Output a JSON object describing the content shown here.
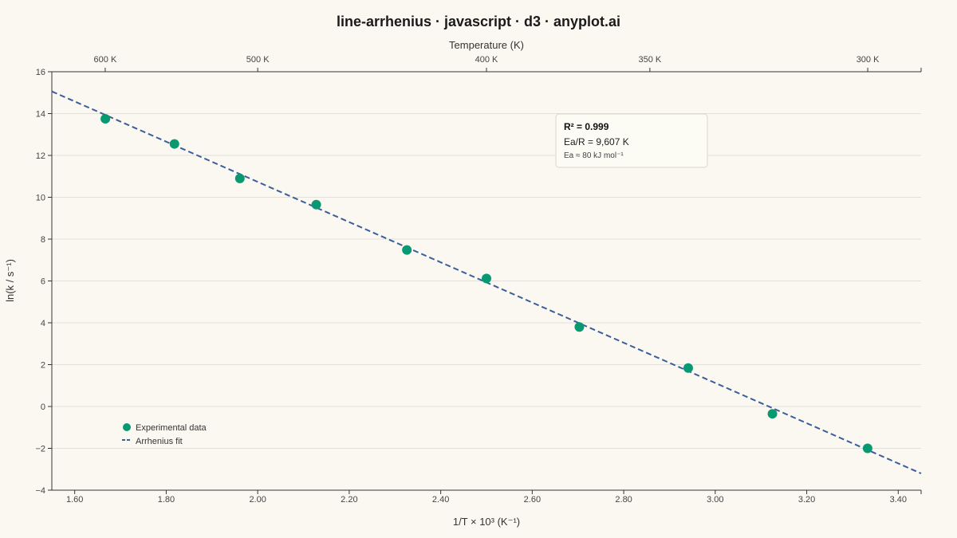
{
  "title": "line-arrhenius · javascript · d3 · anyplot.ai",
  "chart_data": {
    "type": "line",
    "title": "line-arrhenius · javascript · d3 · anyplot.ai",
    "xlabel": "1/T × 10³ (K⁻¹)",
    "ylabel": "ln(k / s⁻¹)",
    "top_xlabel": "Temperature (K)",
    "xlim": [
      1.55,
      3.45
    ],
    "ylim": [
      -4,
      16
    ],
    "x_ticks": [
      1.6,
      1.8,
      2.0,
      2.2,
      2.4,
      2.6,
      2.8,
      3.0,
      3.2,
      3.4
    ],
    "x_tick_labels": [
      "1.60",
      "1.80",
      "2.00",
      "2.20",
      "2.40",
      "2.60",
      "2.80",
      "3.00",
      "3.20",
      "3.40"
    ],
    "y_ticks": [
      -4,
      -2,
      0,
      2,
      4,
      6,
      8,
      10,
      12,
      14,
      16
    ],
    "y_tick_labels": [
      "−4",
      "−2",
      "0",
      "2",
      "4",
      "6",
      "8",
      "10",
      "12",
      "14",
      "16"
    ],
    "top_ticks": [
      {
        "temperature": 600,
        "label": "600 K"
      },
      {
        "temperature": 500,
        "label": "500 K"
      },
      {
        "temperature": 400,
        "label": "400 K"
      },
      {
        "temperature": 350,
        "label": "350 K"
      },
      {
        "temperature": 300,
        "label": "300 K"
      }
    ],
    "series": [
      {
        "name": "Experimental data",
        "kind": "scatter",
        "color": "#079A72",
        "x": [
          1.667,
          1.818,
          1.961,
          2.128,
          2.326,
          2.5,
          2.703,
          2.941,
          3.125,
          3.333
        ],
        "y": [
          13.75,
          12.55,
          10.9,
          9.65,
          7.48,
          6.12,
          3.8,
          1.84,
          -0.35,
          -2.0
        ]
      },
      {
        "name": "Arrhenius fit",
        "kind": "line",
        "color": "#3B5E9A",
        "x": [
          1.55,
          3.45
        ],
        "y": [
          15.06,
          -3.2
        ]
      }
    ],
    "grid": true,
    "legend_position": "bottom-left",
    "annotation": {
      "r2": "R² = 0.999",
      "ea_r": "Ea/R = 9,607 K",
      "ea": "Ea ≈ 80 kJ mol⁻¹"
    }
  }
}
